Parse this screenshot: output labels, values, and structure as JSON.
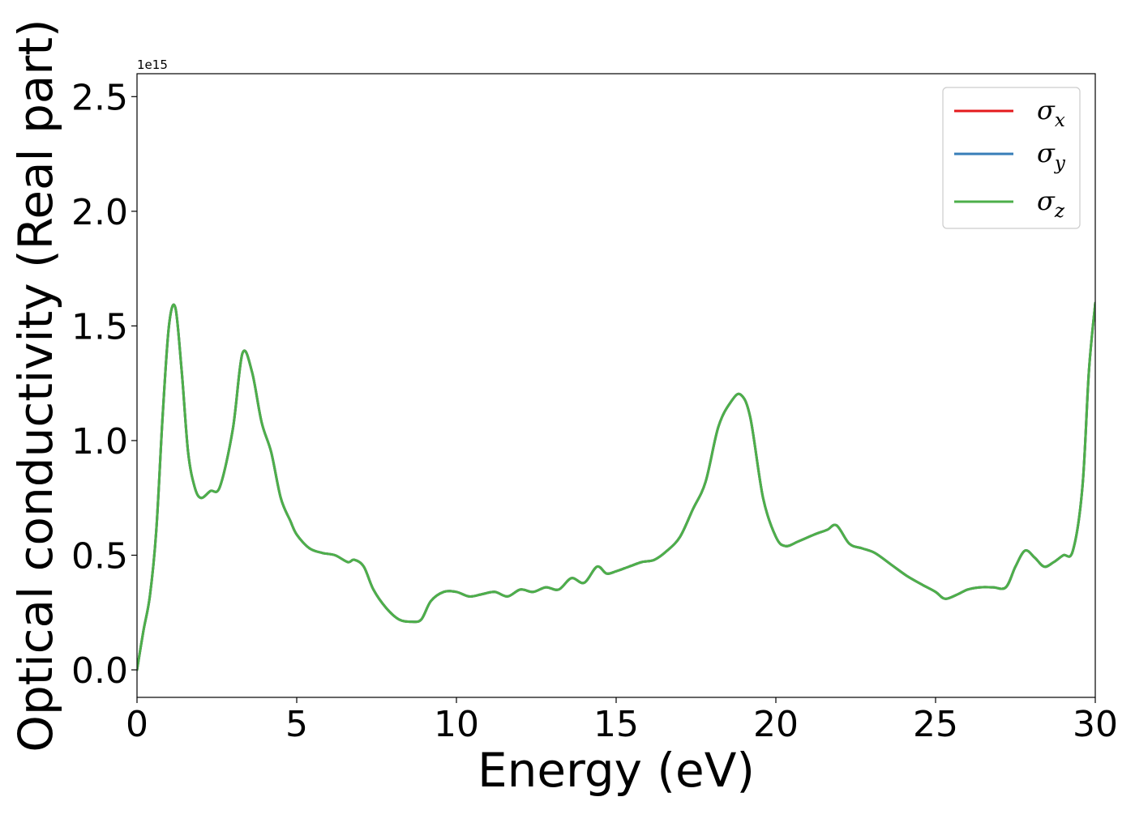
{
  "chart_data": {
    "type": "line",
    "xlabel": "Energy (eV)",
    "ylabel": "Optical conductivity (Real part)",
    "y_offset_label": "1e15",
    "xlim": [
      0,
      30
    ],
    "ylim": [
      -0.12,
      2.6
    ],
    "x_ticks": [
      0,
      5,
      10,
      15,
      20,
      25,
      30
    ],
    "x_tick_labels": [
      "0",
      "5",
      "10",
      "15",
      "20",
      "25",
      "30"
    ],
    "y_ticks": [
      0.0,
      0.5,
      1.0,
      1.5,
      2.0,
      2.5
    ],
    "y_tick_labels": [
      "0.0",
      "0.5",
      "1.0",
      "1.5",
      "2.0",
      "2.5"
    ],
    "grid": false,
    "legend_position": "top-right",
    "series": [
      {
        "name": "σ",
        "subscript": "x",
        "color": "#e41a1c"
      },
      {
        "name": "σ",
        "subscript": "y",
        "color": "#377eb8"
      },
      {
        "name": "σ",
        "subscript": "z",
        "color": "#4daf4a"
      }
    ],
    "x": [
      0,
      0.2,
      0.4,
      0.6,
      0.8,
      1.0,
      1.2,
      1.4,
      1.6,
      1.8,
      2.0,
      2.3,
      2.6,
      3.0,
      3.3,
      3.6,
      3.9,
      4.2,
      4.5,
      4.8,
      5.0,
      5.4,
      5.8,
      6.2,
      6.6,
      6.8,
      7.1,
      7.4,
      7.8,
      8.2,
      8.6,
      8.9,
      9.2,
      9.6,
      10.0,
      10.4,
      10.8,
      11.2,
      11.6,
      12.0,
      12.4,
      12.8,
      13.2,
      13.6,
      14.0,
      14.4,
      14.7,
      15.0,
      15.4,
      15.8,
      16.2,
      16.6,
      17.0,
      17.4,
      17.8,
      18.2,
      18.6,
      18.9,
      19.2,
      19.6,
      20.0,
      20.3,
      20.7,
      21.2,
      21.6,
      21.9,
      22.3,
      22.7,
      23.1,
      23.6,
      24.1,
      24.6,
      25.0,
      25.3,
      25.7,
      26.0,
      26.4,
      26.8,
      27.2,
      27.5,
      27.8,
      28.1,
      28.4,
      28.7,
      29.0,
      29.3,
      29.6,
      29.8,
      30.0
    ],
    "y": [
      0.0,
      0.17,
      0.32,
      0.6,
      1.1,
      1.5,
      1.58,
      1.3,
      0.95,
      0.8,
      0.75,
      0.78,
      0.8,
      1.05,
      1.38,
      1.3,
      1.08,
      0.95,
      0.75,
      0.65,
      0.59,
      0.53,
      0.51,
      0.5,
      0.47,
      0.48,
      0.45,
      0.35,
      0.27,
      0.22,
      0.21,
      0.22,
      0.3,
      0.34,
      0.34,
      0.32,
      0.33,
      0.34,
      0.32,
      0.35,
      0.34,
      0.36,
      0.35,
      0.4,
      0.38,
      0.45,
      0.42,
      0.43,
      0.45,
      0.47,
      0.48,
      0.52,
      0.58,
      0.7,
      0.82,
      1.06,
      1.17,
      1.2,
      1.1,
      0.75,
      0.58,
      0.54,
      0.56,
      0.59,
      0.61,
      0.63,
      0.55,
      0.53,
      0.51,
      0.46,
      0.41,
      0.37,
      0.34,
      0.31,
      0.33,
      0.35,
      0.36,
      0.36,
      0.36,
      0.45,
      0.52,
      0.49,
      0.45,
      0.47,
      0.5,
      0.52,
      0.8,
      1.3,
      1.6
    ]
  }
}
